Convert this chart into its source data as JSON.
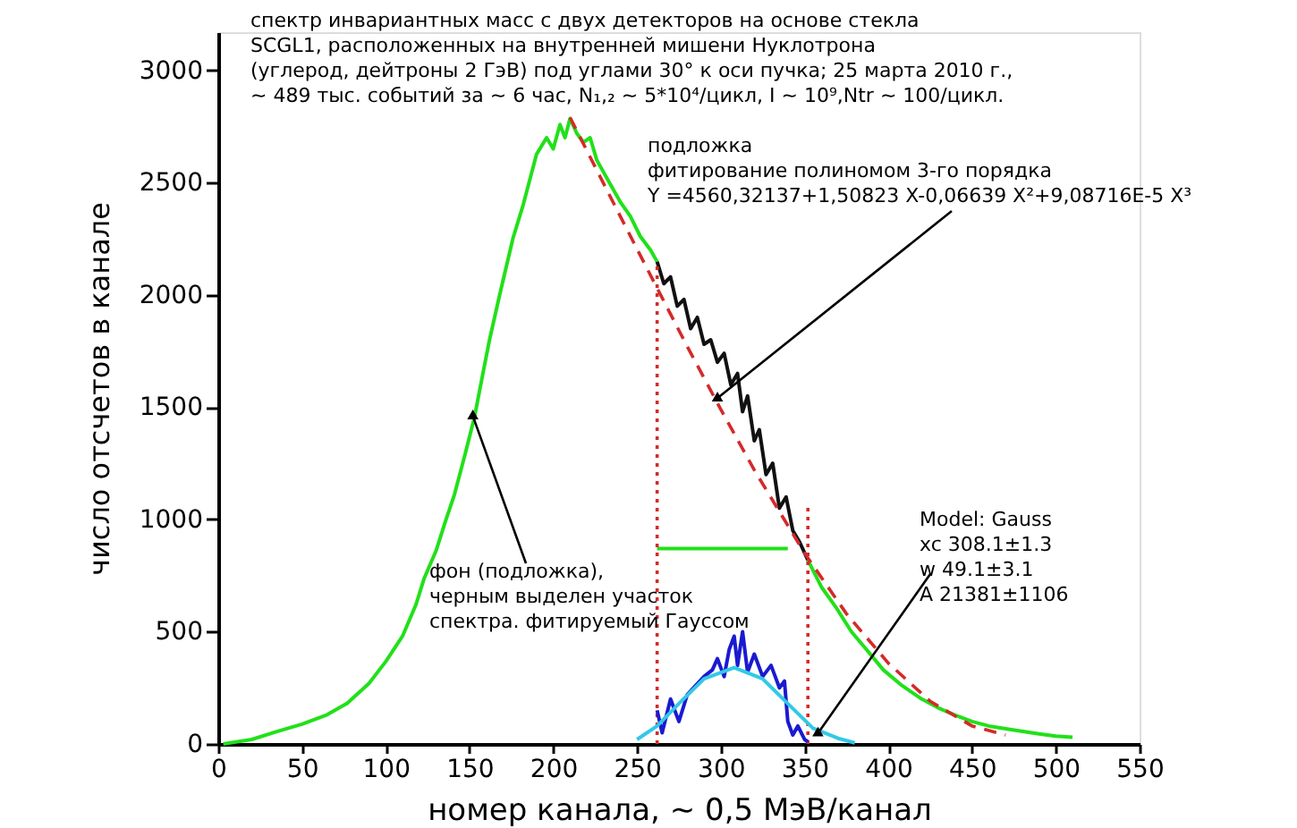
{
  "chart_data": {
    "type": "line",
    "title": "спектр инвариантных масс  с двух детекторов на основе стекла\nSCGL1, расположенных на внутренней мишени Нуклотрона\n(углерод, дейтроны 2 ГэВ) под углами 30° к оси пучка; 25 марта 2010 г.,\n~ 489 тыс. событий за ~ 6 час, N₁,₂ ~ 5*10⁴/цикл, I ~ 10⁹,Ntr ~ 100/цикл.",
    "xlabel": "номер канала, ~ 0,5 МэВ/канал",
    "ylabel": "число отсчетов в канале",
    "xlim": [
      0,
      550
    ],
    "ylim": [
      0,
      3170
    ],
    "xticks": [
      0,
      50,
      100,
      150,
      200,
      250,
      300,
      350,
      400,
      450,
      500,
      550
    ],
    "yticks": [
      0,
      500,
      1000,
      1500,
      2000,
      2500,
      3000
    ],
    "grid": false,
    "marker": "none",
    "series": [
      {
        "color": "#22e01a",
        "x": [
          3,
          20,
          35,
          50,
          65,
          77,
          90,
          100,
          110,
          118,
          123,
          130,
          136,
          141,
          147,
          153,
          158,
          162,
          168,
          176,
          182,
          190,
          196,
          200,
          204,
          207,
          210,
          214,
          218,
          222,
          226,
          232,
          240,
          246,
          252,
          258,
          262
        ],
        "values": [
          0,
          20,
          55,
          88,
          130,
          181,
          270,
          367,
          480,
          620,
          739,
          860,
          1000,
          1111,
          1280,
          1457,
          1650,
          1802,
          2000,
          2254,
          2400,
          2626,
          2700,
          2650,
          2759,
          2700,
          2786,
          2720,
          2680,
          2700,
          2600,
          2520,
          2414,
          2350,
          2260,
          2200,
          2148
        ]
      },
      {
        "color": "#111111",
        "x": [
          262,
          266,
          270,
          274,
          278,
          282,
          286,
          290,
          294,
          298,
          302,
          306,
          310,
          313,
          316,
          320,
          323,
          327,
          331,
          335,
          339,
          343,
          347,
          352
        ],
        "values": [
          2148,
          2050,
          2080,
          1950,
          1980,
          1850,
          1900,
          1780,
          1800,
          1700,
          1740,
          1600,
          1650,
          1480,
          1550,
          1350,
          1400,
          1200,
          1250,
          1050,
          1100,
          950,
          900,
          819
        ]
      },
      {
        "color": "#22e01a",
        "x": [
          352,
          360,
          369,
          378,
          387,
          397,
          408,
          420,
          430,
          440,
          450,
          460,
          476,
          490,
          500,
          510
        ],
        "values": [
          819,
          700,
          606,
          500,
          420,
          330,
          261,
          200,
          160,
          128,
          100,
          80,
          61,
          45,
          35,
          30
        ]
      },
      {
        "color": "#d42a2a",
        "line_style": "dashed",
        "x": [
          210,
          225,
          240,
          262,
          280,
          300,
          320,
          350,
          375,
          400,
          425,
          450,
          470
        ],
        "values": [
          2790,
          2570,
          2350,
          2030,
          1770,
          1490,
          1220,
          850,
          580,
          360,
          190,
          80,
          40
        ]
      },
      {
        "color": "#22e01a",
        "x": [
          262,
          340
        ],
        "values": [
          870,
          870
        ]
      },
      {
        "color": "#d42a2a",
        "line_style": "dotted",
        "x": [
          262,
          262
        ],
        "values": [
          0,
          2148
        ]
      },
      {
        "color": "#d42a2a",
        "line_style": "dotted",
        "x": [
          352,
          352
        ],
        "values": [
          0,
          1070
        ]
      },
      {
        "color": "#1a1ad0",
        "x": [
          262,
          265,
          270,
          275,
          280,
          285,
          290,
          295,
          298,
          302,
          305,
          308,
          310,
          313,
          316,
          320,
          325,
          330,
          335,
          338,
          340,
          343,
          346,
          350,
          352
        ],
        "values": [
          150,
          50,
          200,
          100,
          220,
          260,
          300,
          330,
          380,
          300,
          420,
          480,
          350,
          500,
          320,
          400,
          300,
          350,
          250,
          280,
          100,
          40,
          80,
          20,
          10
        ]
      },
      {
        "color": "#33c8e8",
        "x": [
          250,
          262,
          275,
          290,
          308,
          325,
          340,
          355,
          370,
          380
        ],
        "values": [
          20,
          80,
          180,
          290,
          340,
          290,
          180,
          70,
          25,
          5
        ]
      }
    ],
    "annotations": [
      {
        "text": "подложка\nфитирование полиномом 3-го порядка\nY =4560,32137+1,50823 X-0,06639 X²+9,08716E-5 X³",
        "x": 298,
        "y": 1540
      },
      {
        "text": "фон (подложка),\nчерным выделен участок\nспектра. фитируемый Гауссом",
        "x": 152,
        "y": 1460
      },
      {
        "text": "Model: Gauss\nxc      308.1±1.3\nw        49.1±3.1\nA       21381±1106",
        "x": 358,
        "y": 48
      }
    ]
  }
}
